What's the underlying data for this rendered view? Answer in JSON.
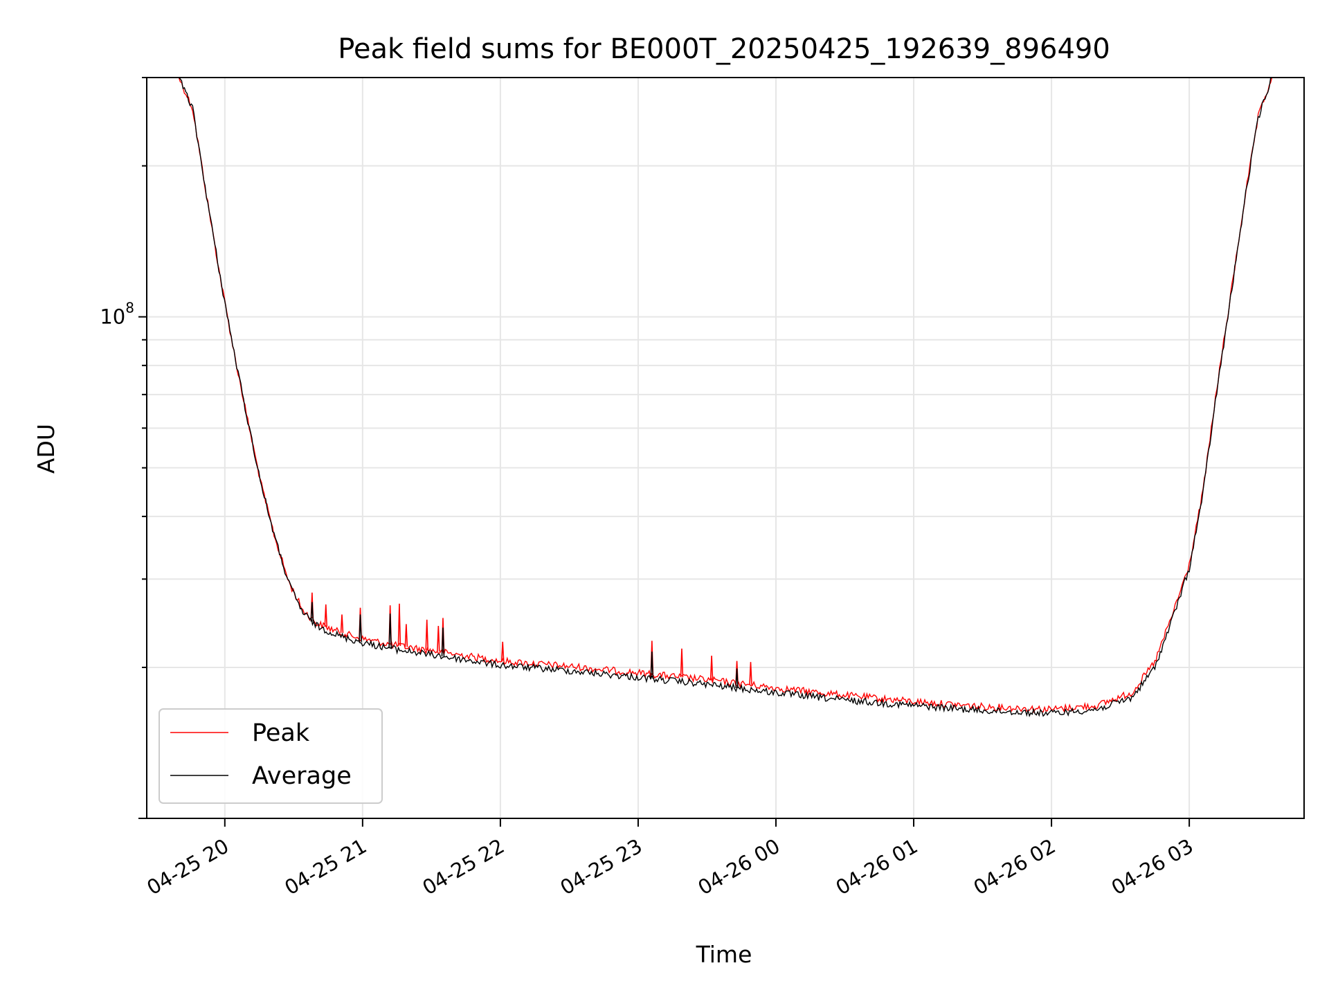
{
  "chart_data": {
    "type": "line",
    "title": "Peak field sums for BE000T_20250425_192639_896490",
    "xlabel": "Time",
    "ylabel": "ADU",
    "yscale": "log",
    "ylim": [
      10000000,
      300000000
    ],
    "xlim": [
      "04-25 19:26",
      "04-26 03:50"
    ],
    "x_ticks": [
      "04-25 20",
      "04-25 21",
      "04-25 22",
      "04-25 23",
      "04-26 00",
      "04-26 01",
      "04-26 02",
      "04-26 03"
    ],
    "y_tick_labels": [
      {
        "value": 100000000,
        "base": "10",
        "exponent": "8"
      }
    ],
    "grid": true,
    "legend_position": "lower-left",
    "series": [
      {
        "name": "Peak",
        "color": "#ff0000",
        "points": [
          [
            "04-25 19:26",
            300000000
          ],
          [
            "04-25 19:40",
            300000000
          ],
          [
            "04-25 19:46",
            260000000
          ],
          [
            "04-25 19:52",
            175000000
          ],
          [
            "04-25 19:58",
            120000000
          ],
          [
            "04-25 20:04",
            85000000
          ],
          [
            "04-25 20:10",
            62000000
          ],
          [
            "04-25 20:16",
            46000000
          ],
          [
            "04-25 20:22",
            36000000
          ],
          [
            "04-25 20:28",
            29500000
          ],
          [
            "04-25 20:34",
            26000000
          ],
          [
            "04-25 20:40",
            24500000
          ],
          [
            "04-25 20:50",
            23500000
          ],
          [
            "04-25 21:00",
            22800000
          ],
          [
            "04-25 21:15",
            22100000
          ],
          [
            "04-25 21:30",
            21600000
          ],
          [
            "04-25 21:45",
            21100000
          ],
          [
            "04-25 22:00",
            20600000
          ],
          [
            "04-25 22:30",
            20100000
          ],
          [
            "04-25 23:00",
            19500000
          ],
          [
            "04-25 23:30",
            18900000
          ],
          [
            "04-26 00:00",
            18200000
          ],
          [
            "04-26 00:30",
            17600000
          ],
          [
            "04-26 01:00",
            17100000
          ],
          [
            "04-26 01:30",
            16700000
          ],
          [
            "04-26 02:00",
            16500000
          ],
          [
            "04-26 02:20",
            16800000
          ],
          [
            "04-26 02:35",
            17800000
          ],
          [
            "04-26 02:45",
            20500000
          ],
          [
            "04-26 02:52",
            25000000
          ],
          [
            "04-26 03:00",
            32000000
          ],
          [
            "04-26 03:06",
            45000000
          ],
          [
            "04-26 03:12",
            72000000
          ],
          [
            "04-26 03:18",
            110000000
          ],
          [
            "04-26 03:24",
            170000000
          ],
          [
            "04-26 03:30",
            250000000
          ],
          [
            "04-26 03:36",
            300000000
          ],
          [
            "04-26 03:50",
            300000000
          ]
        ],
        "spikes": [
          [
            "04-25 20:38",
            28200000
          ],
          [
            "04-25 20:44",
            26700000
          ],
          [
            "04-25 20:51",
            25500000
          ],
          [
            "04-25 20:59",
            26300000
          ],
          [
            "04-25 21:12",
            26600000
          ],
          [
            "04-25 21:16",
            26800000
          ],
          [
            "04-25 21:19",
            24400000
          ],
          [
            "04-25 21:28",
            24900000
          ],
          [
            "04-25 21:33",
            24200000
          ],
          [
            "04-25 21:35",
            25100000
          ],
          [
            "04-25 22:01",
            22500000
          ],
          [
            "04-25 23:06",
            22600000
          ],
          [
            "04-25 23:19",
            21800000
          ],
          [
            "04-25 23:32",
            21100000
          ],
          [
            "04-25 23:43",
            20600000
          ],
          [
            "04-25 23:49",
            20500000
          ]
        ]
      },
      {
        "name": "Average",
        "color": "#000000",
        "points": [
          [
            "04-25 19:26",
            300000000
          ],
          [
            "04-25 19:40",
            300000000
          ],
          [
            "04-25 19:46",
            260000000
          ],
          [
            "04-25 19:52",
            175000000
          ],
          [
            "04-25 19:58",
            120000000
          ],
          [
            "04-25 20:04",
            85000000
          ],
          [
            "04-25 20:10",
            62000000
          ],
          [
            "04-25 20:16",
            46000000
          ],
          [
            "04-25 20:22",
            36000000
          ],
          [
            "04-25 20:28",
            29300000
          ],
          [
            "04-25 20:34",
            25700000
          ],
          [
            "04-25 20:40",
            24200000
          ],
          [
            "04-25 20:50",
            23100000
          ],
          [
            "04-25 21:00",
            22400000
          ],
          [
            "04-25 21:15",
            21700000
          ],
          [
            "04-25 21:30",
            21200000
          ],
          [
            "04-25 21:45",
            20700000
          ],
          [
            "04-25 22:00",
            20200000
          ],
          [
            "04-25 22:30",
            19700000
          ],
          [
            "04-25 23:00",
            19100000
          ],
          [
            "04-25 23:30",
            18500000
          ],
          [
            "04-26 00:00",
            17800000
          ],
          [
            "04-26 00:30",
            17200000
          ],
          [
            "04-26 01:00",
            16800000
          ],
          [
            "04-26 01:30",
            16400000
          ],
          [
            "04-26 02:00",
            16200000
          ],
          [
            "04-26 02:20",
            16500000
          ],
          [
            "04-26 02:35",
            17400000
          ],
          [
            "04-26 02:45",
            20000000
          ],
          [
            "04-26 02:52",
            24500000
          ],
          [
            "04-26 03:00",
            31500000
          ],
          [
            "04-26 03:06",
            44500000
          ],
          [
            "04-26 03:12",
            71000000
          ],
          [
            "04-26 03:18",
            109000000
          ],
          [
            "04-26 03:24",
            169000000
          ],
          [
            "04-26 03:30",
            249000000
          ],
          [
            "04-26 03:36",
            300000000
          ],
          [
            "04-26 03:50",
            300000000
          ]
        ],
        "spikes": [
          [
            "04-25 20:38",
            27000000
          ],
          [
            "04-25 20:59",
            25500000
          ],
          [
            "04-25 21:12",
            25600000
          ],
          [
            "04-25 21:35",
            24000000
          ],
          [
            "04-25 23:06",
            21500000
          ],
          [
            "04-25 23:43",
            19900000
          ]
        ]
      }
    ]
  }
}
